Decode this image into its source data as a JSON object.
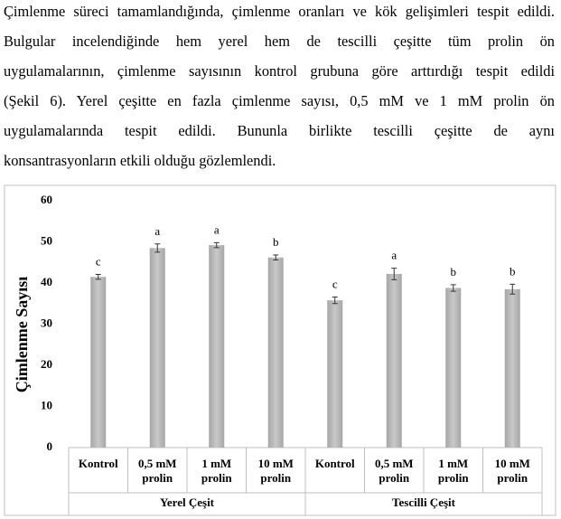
{
  "paragraph": [
    "Çimlenme süreci tamamlandığında, çimlenme oranları ve kök gelişimleri tespit edildi.",
    "Bulgular incelendiğinde hem yerel hem de tescilli çeşitte tüm prolin ön",
    "uygulamalarının, çimlenme sayısının kontrol grubuna göre arttırdığı tespit edildi",
    "(Şekil 6). Yerel çeşitte en fazla çimlenme sayısı, 0,5 mM ve 1 mM prolin ön",
    "uygulamalarında tespit edildi. Bununla birlikte tescilli çeşitte de aynı",
    "konsantrasyonların etkili olduğu gözlemlendi."
  ],
  "chart_data": {
    "type": "bar",
    "y_label": "Çimlenme Sayısı",
    "groups": [
      "Yerel Çeşit",
      "Tescilli Çeşit"
    ],
    "categories": [
      [
        "Kontrol"
      ],
      [
        "0,5 mM",
        "prolin"
      ],
      [
        "1 mM",
        "prolin"
      ],
      [
        "10 mM",
        "prolin"
      ],
      [
        "Kontrol"
      ],
      [
        "0,5 mM",
        "prolin"
      ],
      [
        "1 mM",
        "prolin"
      ],
      [
        "10 mM",
        "prolin"
      ]
    ],
    "values": [
      41.5,
      48.5,
      49.2,
      46.2,
      35.8,
      42.2,
      38.8,
      38.5
    ],
    "errors": [
      0.6,
      1.0,
      0.6,
      0.6,
      0.8,
      1.4,
      0.8,
      1.2
    ],
    "letters": [
      "c",
      "a",
      "a",
      "b",
      "c",
      "a",
      "b",
      "b"
    ],
    "color": "#a6a6a6",
    "ylim": [
      0,
      60
    ],
    "yticks": [
      0,
      10,
      20,
      30,
      40,
      50,
      60
    ]
  }
}
